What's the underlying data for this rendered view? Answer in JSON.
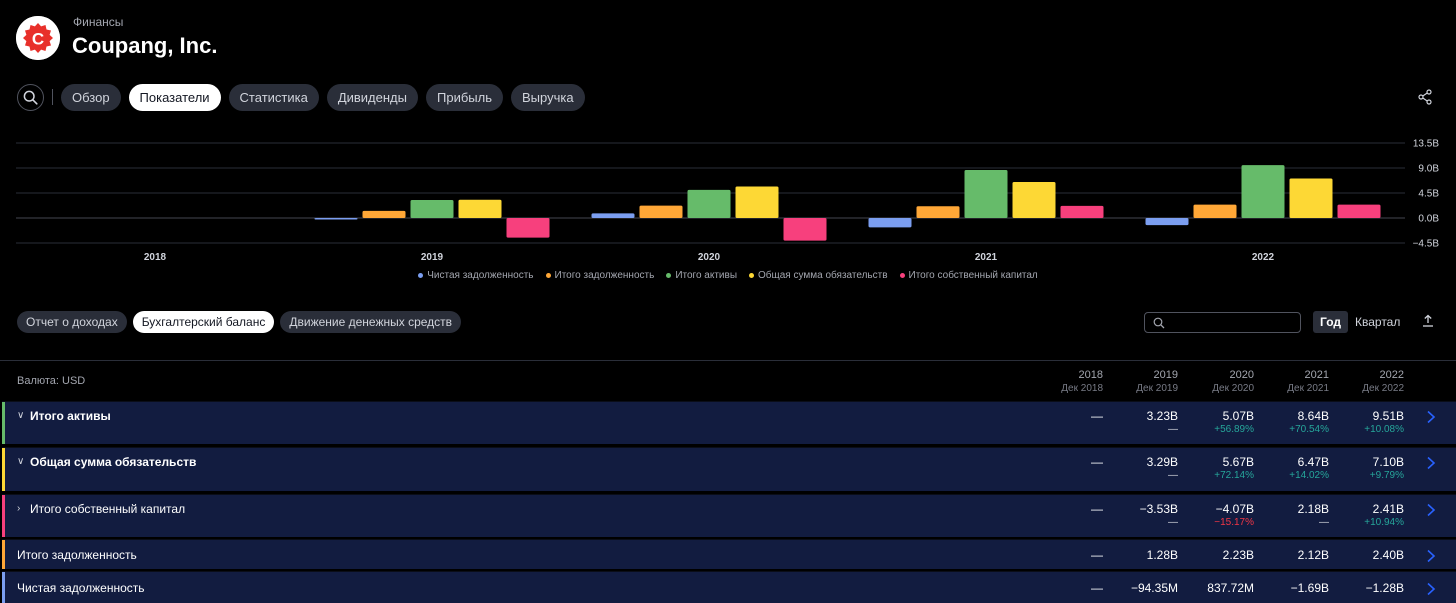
{
  "header": {
    "subtitle": "Финансы",
    "company": "Coupang, Inc.",
    "logo_letter": "C",
    "logo_color": "#e8302a"
  },
  "tabs": [
    {
      "label": "Обзор",
      "active": false
    },
    {
      "label": "Показатели",
      "active": true
    },
    {
      "label": "Статистика",
      "active": false
    },
    {
      "label": "Дивиденды",
      "active": false
    },
    {
      "label": "Прибыль",
      "active": false
    },
    {
      "label": "Выручка",
      "active": false
    }
  ],
  "chart_data": {
    "type": "bar",
    "categories": [
      "2018",
      "2019",
      "2020",
      "2021",
      "2022"
    ],
    "series": [
      {
        "name": "Чистая задолженность",
        "color": "#7b9ef0",
        "values": [
          null,
          -0.09435,
          0.83772,
          -1.69,
          -1.28
        ]
      },
      {
        "name": "Итого задолженность",
        "color": "#ffa737",
        "values": [
          null,
          1.28,
          2.23,
          2.12,
          2.4
        ]
      },
      {
        "name": "Итого активы",
        "color": "#66bb6a",
        "values": [
          null,
          3.23,
          5.07,
          8.64,
          9.51
        ]
      },
      {
        "name": "Общая сумма обязательств",
        "color": "#fdd835",
        "values": [
          null,
          3.29,
          5.67,
          6.47,
          7.1
        ]
      },
      {
        "name": "Итого собственный капитал",
        "color": "#f7407d",
        "values": [
          null,
          -3.53,
          -4.07,
          2.18,
          2.41
        ]
      }
    ],
    "y_ticks": [
      "13.5B",
      "9.0B",
      "4.5B",
      "0.0B",
      "−4.5B"
    ],
    "ylim": [
      -4.5,
      13.5
    ],
    "grid": true,
    "legend_position": "bottom-center"
  },
  "statement_tabs": [
    {
      "label": "Отчет о доходах",
      "active": false
    },
    {
      "label": "Бухгалтерский баланс",
      "active": true
    },
    {
      "label": "Движение денежных средств",
      "active": false
    }
  ],
  "period": {
    "year": "Год",
    "quarter": "Квартал"
  },
  "table": {
    "currency": "Валюта: USD",
    "columns": [
      {
        "year": "2018",
        "date": "Дек 2018"
      },
      {
        "year": "2019",
        "date": "Дек 2019"
      },
      {
        "year": "2020",
        "date": "Дек 2020"
      },
      {
        "year": "2021",
        "date": "Дек 2021"
      },
      {
        "year": "2022",
        "date": "Дек 2022"
      }
    ],
    "rows": [
      {
        "label": "Итого активы",
        "color": "#66bb6a",
        "bold": true,
        "expand": "∨",
        "values": [
          "—",
          "3.23B",
          "5.07B",
          "8.64B",
          "9.51B"
        ],
        "changes": [
          "",
          "—",
          "+56.89%",
          "+70.54%",
          "+10.08%"
        ],
        "change_kind": [
          "",
          "dash",
          "pos",
          "pos",
          "pos"
        ]
      },
      {
        "label": "Общая сумма обязательств",
        "color": "#fdd835",
        "bold": true,
        "expand": "∨",
        "values": [
          "—",
          "3.29B",
          "5.67B",
          "6.47B",
          "7.10B"
        ],
        "changes": [
          "",
          "—",
          "+72.14%",
          "+14.02%",
          "+9.79%"
        ],
        "change_kind": [
          "",
          "dash",
          "pos",
          "pos",
          "pos"
        ]
      },
      {
        "label": "Итого собственный капитал",
        "color": "#f7407d",
        "bold": false,
        "expand": "›",
        "values": [
          "—",
          "−3.53B",
          "−4.07B",
          "2.18B",
          "2.41B"
        ],
        "changes": [
          "",
          "—",
          "−15.17%",
          "—",
          "+10.94%"
        ],
        "change_kind": [
          "",
          "dash",
          "neg",
          "dash",
          "pos"
        ]
      },
      {
        "label": "Итого задолженность",
        "color": "#ffa737",
        "bold": false,
        "expand": "",
        "values": [
          "—",
          "1.28B",
          "2.23B",
          "2.12B",
          "2.40B"
        ],
        "changes": [],
        "change_kind": []
      },
      {
        "label": "Чистая задолженность",
        "color": "#7b9ef0",
        "bold": false,
        "expand": "",
        "values": [
          "—",
          "−94.35M",
          "837.72M",
          "−1.69B",
          "−1.28B"
        ],
        "changes": [],
        "change_kind": []
      }
    ]
  }
}
